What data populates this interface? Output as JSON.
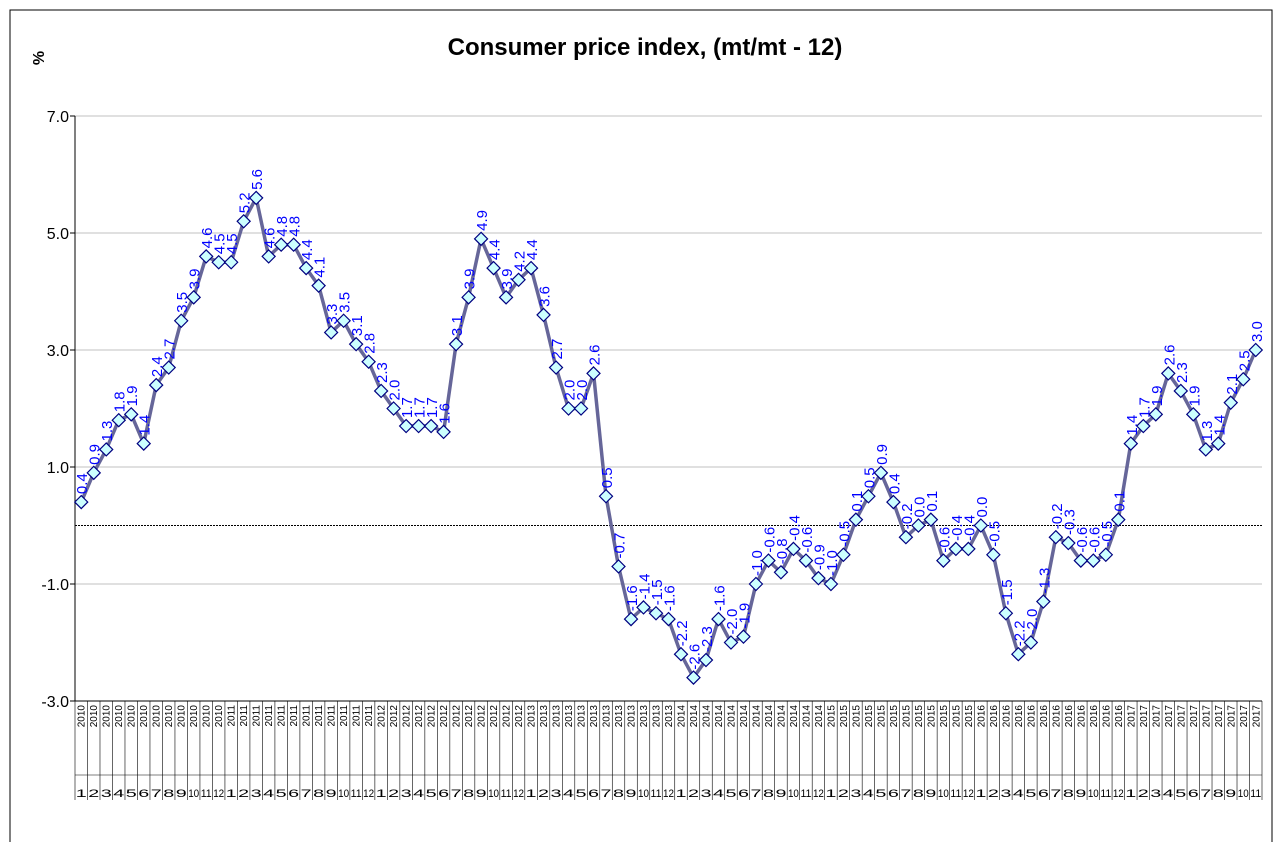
{
  "chart_data": {
    "type": "line",
    "title": "Consumer price index, (mt/mt - 12)",
    "y_label": "%",
    "categories": [
      "1",
      "2",
      "3",
      "4",
      "5",
      "6",
      "7",
      "8",
      "9",
      "10",
      "11",
      "12",
      "1",
      "2",
      "3",
      "4",
      "5",
      "6",
      "7",
      "8",
      "9",
      "10",
      "11",
      "12",
      "1",
      "2",
      "3",
      "4",
      "5",
      "6",
      "7",
      "8",
      "9",
      "10",
      "11",
      "12",
      "1",
      "2",
      "3",
      "4",
      "5",
      "6",
      "7",
      "8",
      "9",
      "10",
      "11",
      "12",
      "1",
      "2",
      "3",
      "4",
      "5",
      "6",
      "7",
      "8",
      "9",
      "10",
      "11",
      "12",
      "1",
      "2",
      "3",
      "4",
      "5",
      "6",
      "7",
      "8",
      "9",
      "10",
      "11",
      "12",
      "1",
      "2",
      "3",
      "4",
      "5",
      "6",
      "7",
      "8",
      "9",
      "10",
      "11",
      "12",
      "1",
      "2",
      "3",
      "4",
      "5",
      "6",
      "7",
      "8",
      "9",
      "10",
      "11"
    ],
    "category_years": [
      "2010",
      "2010",
      "2010",
      "2010",
      "2010",
      "2010",
      "2010",
      "2010",
      "2010",
      "2010",
      "2010",
      "2010",
      "2011",
      "2011",
      "2011",
      "2011",
      "2011",
      "2011",
      "2011",
      "2011",
      "2011",
      "2011",
      "2011",
      "2011",
      "2012",
      "2012",
      "2012",
      "2012",
      "2012",
      "2012",
      "2012",
      "2012",
      "2012",
      "2012",
      "2012",
      "2012",
      "2013",
      "2013",
      "2013",
      "2013",
      "2013",
      "2013",
      "2013",
      "2013",
      "2013",
      "2013",
      "2013",
      "2013",
      "2014",
      "2014",
      "2014",
      "2014",
      "2014",
      "2014",
      "2014",
      "2014",
      "2014",
      "2014",
      "2014",
      "2014",
      "2015",
      "2015",
      "2015",
      "2015",
      "2015",
      "2015",
      "2015",
      "2015",
      "2015",
      "2015",
      "2015",
      "2015",
      "2016",
      "2016",
      "2016",
      "2016",
      "2016",
      "2016",
      "2016",
      "2016",
      "2016",
      "2016",
      "2016",
      "2016",
      "2017",
      "2017",
      "2017",
      "2017",
      "2017",
      "2017",
      "2017",
      "2017",
      "2017",
      "2017",
      "2017"
    ],
    "values": [
      0.4,
      0.9,
      1.3,
      1.8,
      1.9,
      1.4,
      2.4,
      2.7,
      3.5,
      3.9,
      4.6,
      4.5,
      4.5,
      5.2,
      5.6,
      4.6,
      4.8,
      4.8,
      4.4,
      4.1,
      3.3,
      3.5,
      3.1,
      2.8,
      2.3,
      2.0,
      1.7,
      1.7,
      1.7,
      1.6,
      3.1,
      3.9,
      4.9,
      4.4,
      3.9,
      4.2,
      4.4,
      3.6,
      2.7,
      2.0,
      2.0,
      2.6,
      0.5,
      -0.7,
      -1.6,
      -1.4,
      -1.5,
      -1.6,
      -2.2,
      -2.6,
      -2.3,
      -1.6,
      -2.0,
      -1.9,
      -1.0,
      -0.6,
      -0.8,
      -0.4,
      -0.6,
      -0.9,
      -1.0,
      -0.5,
      0.1,
      0.5,
      0.9,
      0.4,
      -0.2,
      0.0,
      0.1,
      -0.6,
      -0.4,
      -0.4,
      0.0,
      -0.5,
      -1.5,
      -2.2,
      -2.0,
      -1.3,
      -0.2,
      -0.3,
      -0.6,
      -0.6,
      -0.5,
      0.1,
      1.4,
      1.7,
      1.9,
      2.6,
      2.3,
      1.9,
      1.3,
      1.4,
      2.1,
      2.5,
      3.0
    ],
    "value_labels": [
      "0.4",
      "0.9",
      "1.3",
      "1.8",
      "1.9",
      "1.4",
      "2.4",
      "2.7",
      "3.5",
      "3.9",
      "4.6",
      "4.5",
      "4.5",
      "5.2",
      "5.6",
      "4.6",
      "4.8",
      "4.8",
      "4.4",
      "4.1",
      "3.3",
      "3.5",
      "3.1",
      "2.8",
      "2.3",
      "2.0",
      "1.7",
      "1.7",
      "1.7",
      "1.6",
      "3.1",
      "3.9",
      "4.9",
      "4.4",
      "3.9",
      "4.2",
      "4.4",
      "3.6",
      "2.7",
      "2.0",
      "2.0",
      "2.6",
      "0.5",
      "-0.7",
      "-1.6",
      "-1.4",
      "-1.5",
      "-1.6",
      "-2.2",
      "-2.6",
      "-2.3",
      "-1.6",
      "-2.0",
      "-1.9",
      "-1.0",
      "-0.6",
      "-0.8",
      "-0.4",
      "-0.6",
      "-0.9",
      "-1.0",
      "-0.5",
      "0.1",
      "0.5",
      "0.9",
      "0.4",
      "-0.2",
      "0.0",
      "0.1",
      "-0.6",
      "-0.4",
      "-0.4",
      "0.0",
      "-0.5",
      "-1.5",
      "-2.2",
      "-2.0",
      "-1.3",
      "-0.2",
      "-0.3",
      "-0.6",
      "-0.6",
      "-0.5",
      "0.1",
      "1.4",
      "1.7",
      "1.9",
      "2.6",
      "2.3",
      "1.9",
      "1.3",
      "1.4",
      "2.1",
      "2.5",
      "3.0"
    ],
    "color": "#666699",
    "marker_fill": "#ccffff",
    "marker_stroke": "#000080",
    "label_color": "#0000ff",
    "ylim": [
      -3,
      7
    ],
    "yticks": [
      {
        "value": -3,
        "label": "-3.0"
      },
      {
        "value": -1,
        "label": "-1.0"
      },
      {
        "value": 1,
        "label": "1.0"
      },
      {
        "value": 3,
        "label": "3.0"
      },
      {
        "value": 5,
        "label": "5.0"
      },
      {
        "value": 7,
        "label": "7.0"
      }
    ],
    "grid": true
  }
}
